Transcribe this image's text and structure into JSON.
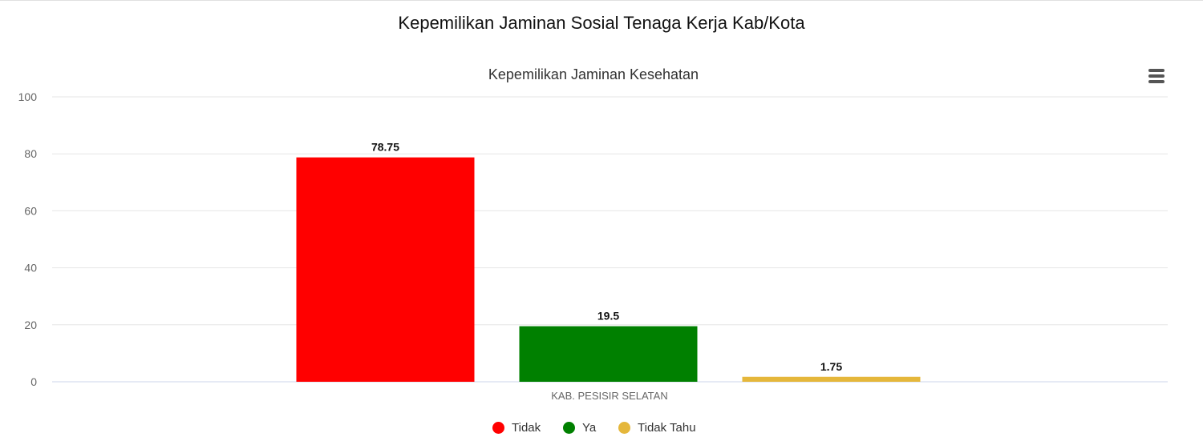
{
  "page": {
    "title": "Kepemilikan Jaminan Sosial Tenaga Kerja Kab/Kota"
  },
  "menu": {
    "icon": "hamburger-menu-icon"
  },
  "chart_data": {
    "type": "bar",
    "title": "Kepemilikan Jaminan Kesehatan",
    "categories": [
      "KAB. PESISIR SELATAN"
    ],
    "series": [
      {
        "name": "Tidak",
        "values": [
          78.75
        ],
        "color": "#ff0000"
      },
      {
        "name": "Ya",
        "values": [
          19.5
        ],
        "color": "#008000"
      },
      {
        "name": "Tidak Tahu",
        "values": [
          1.75
        ],
        "color": "#e5b73b"
      }
    ],
    "ylim": [
      0,
      100
    ],
    "yticks": [
      "0",
      "20",
      "40",
      "60",
      "80",
      "100"
    ],
    "data_labels": [
      "78.75",
      "19.5",
      "1.75"
    ],
    "grid": true,
    "legend_position": "bottom-center"
  }
}
